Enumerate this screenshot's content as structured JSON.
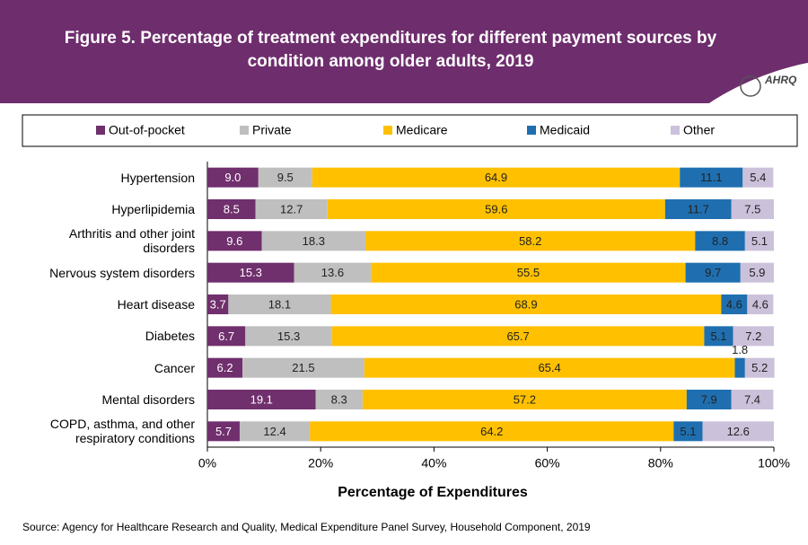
{
  "header": {
    "title": "Figure 5. Percentage of treatment expenditures for different payment sources by condition among older adults, 2019",
    "logo": "AHRQ"
  },
  "chart_data": {
    "type": "stacked-barh",
    "categories": [
      "Hypertension",
      "Hyperlipidemia",
      "Arthritis and other joint disorders",
      "Nervous system disorders",
      "Heart disease",
      "Diabetes",
      "Cancer",
      "Mental disorders",
      "COPD, asthma, and other respiratory conditions"
    ],
    "series": [
      {
        "name": "Out-of-pocket",
        "color": "#702f6d",
        "values": [
          9.0,
          8.5,
          9.6,
          15.3,
          3.7,
          6.7,
          6.2,
          19.1,
          5.7
        ],
        "value_labels": [
          "9.0",
          "8.5",
          "9.6",
          "15.3",
          "3.7",
          "6.7",
          "6.2",
          "19.1",
          "5.7"
        ]
      },
      {
        "name": "Private",
        "color": "#bfbfbf",
        "values": [
          9.5,
          12.7,
          18.3,
          13.6,
          18.1,
          15.3,
          21.5,
          8.3,
          12.4
        ],
        "value_labels": [
          "9.5",
          "12.7",
          "18.3",
          "13.6",
          "18.1",
          "15.3",
          "21.5",
          "8.3",
          "12.4"
        ]
      },
      {
        "name": "Medicare",
        "color": "#ffc000",
        "values": [
          64.9,
          59.6,
          58.2,
          55.5,
          68.9,
          65.7,
          65.4,
          57.2,
          64.2
        ],
        "value_labels": [
          "64.9",
          "59.6",
          "58.2",
          "55.5",
          "68.9",
          "65.7",
          "65.4",
          "57.2",
          "64.2"
        ]
      },
      {
        "name": "Medicaid",
        "color": "#1f6fb0",
        "values": [
          11.1,
          11.7,
          8.8,
          9.7,
          4.6,
          5.1,
          1.8,
          7.9,
          5.1
        ],
        "value_labels": [
          "11.1",
          "11.7",
          "8.8",
          "9.7",
          "4.6",
          "5.1",
          "1.8",
          "7.9",
          "5.1"
        ]
      },
      {
        "name": "Other",
        "color": "#ccc1da",
        "values": [
          5.4,
          7.5,
          5.1,
          5.9,
          4.6,
          7.2,
          5.2,
          7.4,
          12.6
        ],
        "value_labels": [
          "5.4",
          "7.5",
          "5.1",
          "5.9",
          "4.6",
          "7.2",
          "5.2",
          "7.4",
          "12.6"
        ]
      }
    ],
    "xlim": [
      0,
      100
    ],
    "xticks": [
      {
        "value": 0,
        "label": "0%"
      },
      {
        "value": 20,
        "label": "20%"
      },
      {
        "value": 40,
        "label": "40%"
      },
      {
        "value": 60,
        "label": "60%"
      },
      {
        "value": 80,
        "label": "80%"
      },
      {
        "value": 100,
        "label": "100%"
      }
    ],
    "xlabel": "Percentage of Expenditures",
    "legend": "top"
  },
  "footer": {
    "source": "Source: Agency for Healthcare Research and Quality, Medical Expenditure Panel Survey, Household Component, 2019"
  }
}
